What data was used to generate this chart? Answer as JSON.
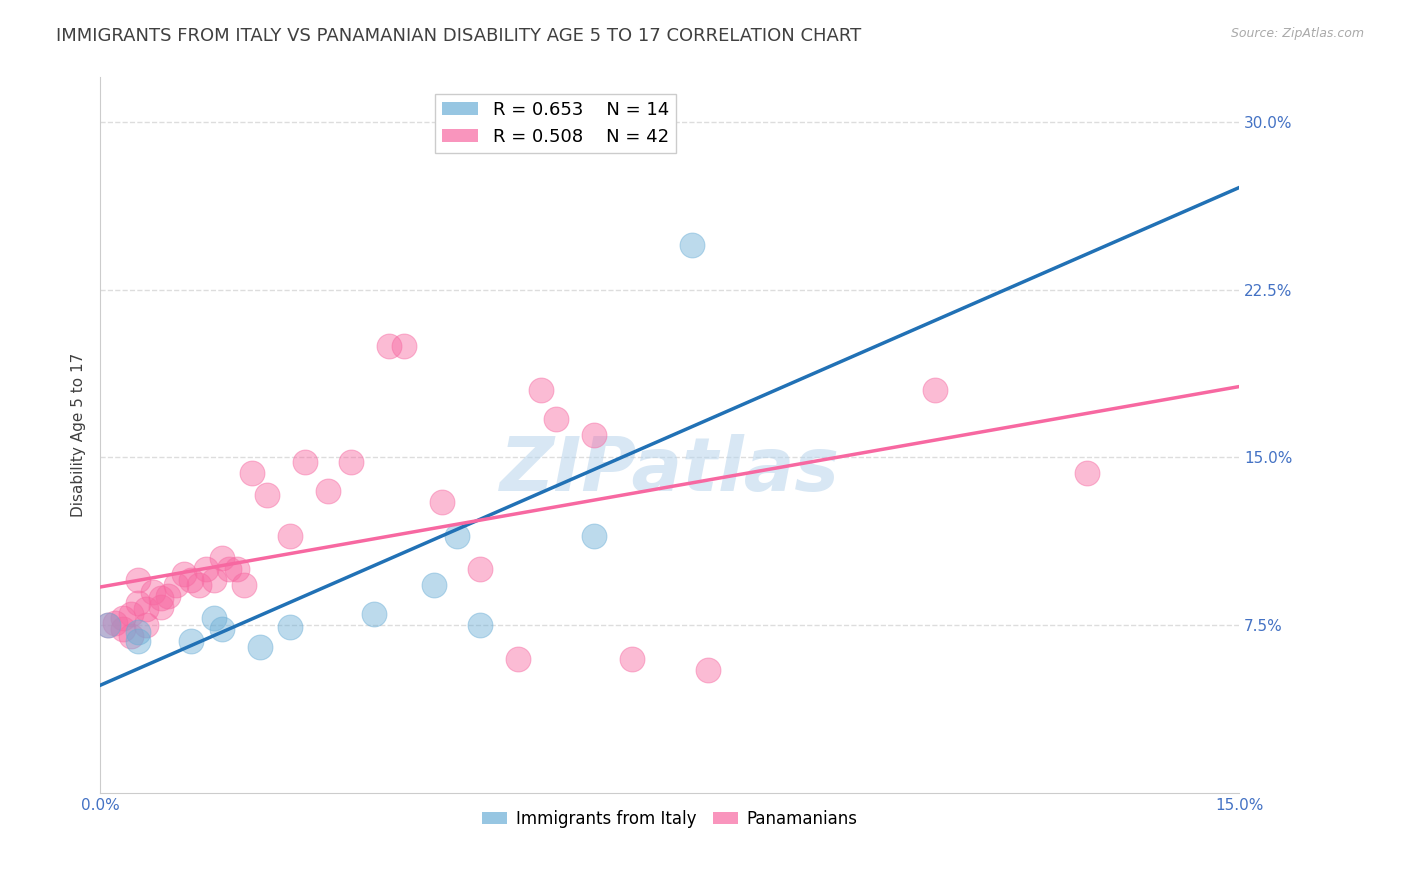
{
  "title": "IMMIGRANTS FROM ITALY VS PANAMANIAN DISABILITY AGE 5 TO 17 CORRELATION CHART",
  "source": "Source: ZipAtlas.com",
  "ylabel": "Disability Age 5 to 17",
  "x_min": 0.0,
  "x_max": 0.15,
  "y_min": 0.0,
  "y_max": 0.32,
  "y_ticks_right": [
    0.0,
    0.075,
    0.15,
    0.225,
    0.3
  ],
  "y_tick_labels_right": [
    "",
    "7.5%",
    "15.0%",
    "22.5%",
    "30.0%"
  ],
  "watermark": "ZIPatlas",
  "legend_italy_r": "R = 0.653",
  "legend_italy_n": "N = 14",
  "legend_panama_r": "R = 0.508",
  "legend_panama_n": "N = 42",
  "italy_color": "#6baed6",
  "panama_color": "#f768a1",
  "italy_line_color": "#2171b5",
  "panama_line_color": "#f768a1",
  "italy_scatter_x": [
    0.001,
    0.005,
    0.005,
    0.012,
    0.015,
    0.016,
    0.021,
    0.025,
    0.036,
    0.044,
    0.047,
    0.05,
    0.065,
    0.078
  ],
  "italy_scatter_y": [
    0.075,
    0.068,
    0.072,
    0.068,
    0.078,
    0.073,
    0.065,
    0.074,
    0.08,
    0.093,
    0.115,
    0.075,
    0.115,
    0.245
  ],
  "panama_scatter_x": [
    0.001,
    0.002,
    0.003,
    0.003,
    0.004,
    0.004,
    0.005,
    0.005,
    0.006,
    0.006,
    0.007,
    0.008,
    0.008,
    0.009,
    0.01,
    0.011,
    0.012,
    0.013,
    0.014,
    0.015,
    0.016,
    0.017,
    0.018,
    0.019,
    0.02,
    0.022,
    0.025,
    0.027,
    0.03,
    0.033,
    0.038,
    0.04,
    0.045,
    0.05,
    0.055,
    0.058,
    0.06,
    0.065,
    0.07,
    0.08,
    0.11,
    0.13
  ],
  "panama_scatter_y": [
    0.075,
    0.076,
    0.073,
    0.078,
    0.07,
    0.08,
    0.085,
    0.095,
    0.075,
    0.082,
    0.09,
    0.083,
    0.087,
    0.088,
    0.093,
    0.098,
    0.095,
    0.093,
    0.1,
    0.095,
    0.105,
    0.1,
    0.1,
    0.093,
    0.143,
    0.133,
    0.115,
    0.148,
    0.135,
    0.148,
    0.2,
    0.2,
    0.13,
    0.1,
    0.06,
    0.18,
    0.167,
    0.16,
    0.06,
    0.055,
    0.18,
    0.143
  ],
  "grid_color": "#dddddd",
  "background_color": "#ffffff",
  "axis_label_color": "#4472c4",
  "title_color": "#404040",
  "title_fontsize": 13,
  "axis_tick_fontsize": 11,
  "ylabel_fontsize": 11
}
